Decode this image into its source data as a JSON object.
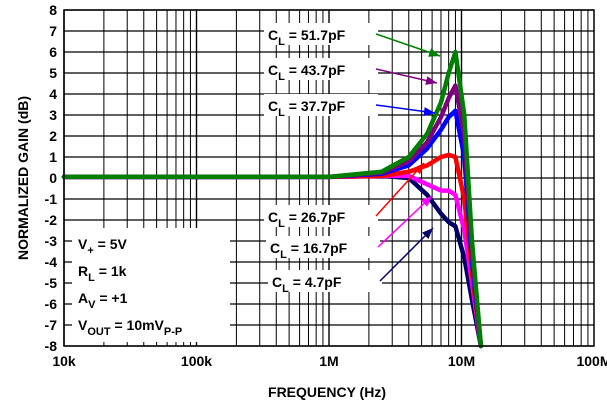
{
  "chart_data": {
    "type": "line",
    "xlabel": "FREQUENCY (Hz)",
    "ylabel": "NORMALIZED GAIN (dB)",
    "xscale": "log",
    "xlim": [
      10000,
      100000000
    ],
    "ylim": [
      -8,
      8
    ],
    "grid": true,
    "x_ticks": [
      {
        "value": 10000,
        "label": "10k"
      },
      {
        "value": 100000,
        "label": "100k"
      },
      {
        "value": 1000000,
        "label": "1M"
      },
      {
        "value": 10000000,
        "label": "10M"
      },
      {
        "value": 100000000,
        "label": "100M"
      }
    ],
    "y_ticks": [
      {
        "value": 8,
        "label": "8"
      },
      {
        "value": 7,
        "label": "7"
      },
      {
        "value": 6,
        "label": "6"
      },
      {
        "value": 5,
        "label": "5"
      },
      {
        "value": 4,
        "label": "4"
      },
      {
        "value": 3,
        "label": "3"
      },
      {
        "value": 2,
        "label": "2"
      },
      {
        "value": 1,
        "label": "1"
      },
      {
        "value": 0,
        "label": "0"
      },
      {
        "value": -1,
        "label": "-1"
      },
      {
        "value": -2,
        "label": "-2"
      },
      {
        "value": -3,
        "label": "-3"
      },
      {
        "value": -4,
        "label": "-4"
      },
      {
        "value": -5,
        "label": "-5"
      },
      {
        "value": -6,
        "label": "-6"
      },
      {
        "value": -7,
        "label": "-7"
      },
      {
        "value": -8,
        "label": "-8"
      }
    ],
    "conditions": [
      {
        "base": "V",
        "sub": "+",
        "rest": " = 5V",
        "sub2": ""
      },
      {
        "base": "R",
        "sub": "L",
        "rest": " = 1k",
        "sub2": ""
      },
      {
        "base": "A",
        "sub": "V",
        "rest": " = +1",
        "sub2": ""
      },
      {
        "base": "V",
        "sub": "OUT",
        "rest": " = 10mV",
        "sub2": "P-P"
      }
    ],
    "series": [
      {
        "name": "CL = 4.7pF",
        "label": {
          "base": "C",
          "sub": "L",
          "rest": " = 4.7pF"
        },
        "color": "#000066",
        "x": [
          10000,
          100000,
          1000000,
          2500000,
          4000000,
          5500000,
          7000000,
          8000000,
          9000000,
          10500000,
          12000000,
          14000000
        ],
        "y": [
          0.05,
          0.05,
          0.05,
          0.1,
          0,
          -0.8,
          -1.7,
          -2.1,
          -2.3,
          -3.8,
          -5.8,
          -8
        ]
      },
      {
        "name": "CL = 16.7pF",
        "label": {
          "base": "C",
          "sub": "L",
          "rest": " = 16.7pF"
        },
        "color": "#ff00ff",
        "x": [
          10000,
          100000,
          1000000,
          2500000,
          4000000,
          5500000,
          7000000,
          8000000,
          9000000,
          10500000,
          12000000,
          14000000
        ],
        "y": [
          0.05,
          0.05,
          0.05,
          0.1,
          0.1,
          -0.3,
          -0.6,
          -0.6,
          -0.8,
          -2.5,
          -5,
          -8
        ]
      },
      {
        "name": "CL = 26.7pF",
        "label": {
          "base": "C",
          "sub": "L",
          "rest": " = 26.7pF"
        },
        "color": "#ff0000",
        "x": [
          10000,
          100000,
          1000000,
          2500000,
          4000000,
          5500000,
          7000000,
          8000000,
          9000000,
          10500000,
          12000000,
          14000000
        ],
        "y": [
          0.05,
          0.05,
          0.05,
          0.1,
          0.3,
          0.6,
          1.0,
          1.1,
          1.0,
          -1.0,
          -4.5,
          -8
        ]
      },
      {
        "name": "CL = 37.7pF",
        "label": {
          "base": "C",
          "sub": "L",
          "rest": " = 37.7pF"
        },
        "color": "#0000ff",
        "x": [
          10000,
          100000,
          1000000,
          2500000,
          4000000,
          5500000,
          7000000,
          8000000,
          9000000,
          10500000,
          12000000,
          14000000
        ],
        "y": [
          0.05,
          0.05,
          0.05,
          0.2,
          0.6,
          1.4,
          2.3,
          2.9,
          3.2,
          1.0,
          -4.0,
          -8
        ]
      },
      {
        "name": "CL = 43.7pF",
        "label": {
          "base": "C",
          "sub": "L",
          "rest": " = 43.7pF"
        },
        "color": "#800080",
        "x": [
          10000,
          100000,
          1000000,
          2500000,
          4000000,
          5500000,
          7000000,
          8000000,
          9000000,
          10500000,
          12000000,
          14000000
        ],
        "y": [
          0.05,
          0.05,
          0.05,
          0.25,
          0.8,
          1.7,
          2.9,
          3.8,
          4.4,
          2.0,
          -3.5,
          -8
        ]
      },
      {
        "name": "CL = 51.7pF",
        "label": {
          "base": "C",
          "sub": "L",
          "rest": " = 51.7pF"
        },
        "color": "#008000",
        "x": [
          10000,
          100000,
          1000000,
          2500000,
          4000000,
          5500000,
          7000000,
          8000000,
          9000000,
          10500000,
          12000000,
          14000000
        ],
        "y": [
          0.05,
          0.05,
          0.05,
          0.3,
          1.0,
          2.1,
          3.6,
          5.0,
          6.0,
          3.0,
          -3.0,
          -8
        ]
      }
    ]
  }
}
